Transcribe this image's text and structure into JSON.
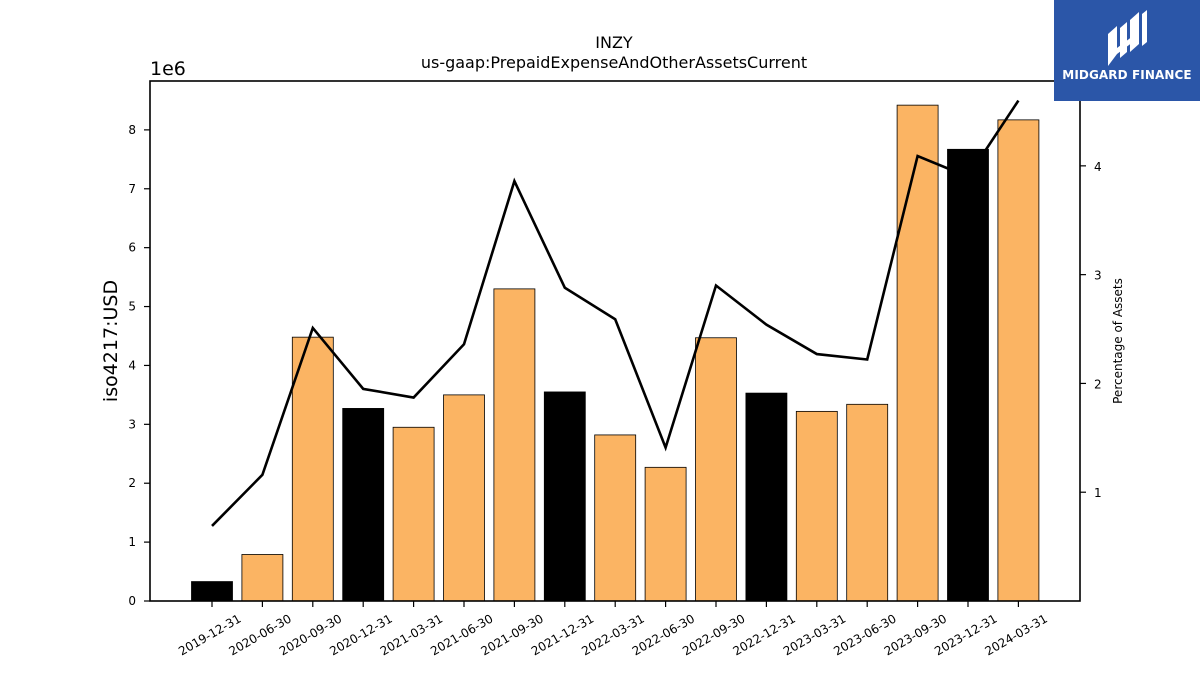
{
  "chart_data": {
    "type": "bar",
    "title": "INZY",
    "subtitle": "us-gaap:PrepaidExpenseAndOtherAssetsCurrent",
    "ylabel": "iso4217:USD",
    "y_multiplier_label": "1e6",
    "y2label": "Percentage of Assets",
    "categories": [
      "2019-12-31",
      "2020-06-30",
      "2020-09-30",
      "2020-12-31",
      "2021-03-31",
      "2021-06-30",
      "2021-09-30",
      "2021-12-31",
      "2022-03-31",
      "2022-06-30",
      "2022-09-30",
      "2022-12-31",
      "2023-03-31",
      "2023-06-30",
      "2023-09-30",
      "2023-12-31",
      "2024-03-31"
    ],
    "values": [
      0.33,
      0.79,
      4.48,
      3.27,
      2.95,
      3.5,
      5.3,
      3.55,
      2.82,
      2.27,
      4.47,
      3.53,
      3.22,
      3.34,
      8.42,
      7.67,
      8.17
    ],
    "bar_colors": [
      "#000000",
      "#fbb463",
      "#fbb463",
      "#000000",
      "#fbb463",
      "#fbb463",
      "#fbb463",
      "#000000",
      "#fbb463",
      "#fbb463",
      "#fbb463",
      "#000000",
      "#fbb463",
      "#fbb463",
      "#fbb463",
      "#000000",
      "#fbb463"
    ],
    "ylim": [
      0,
      8.83
    ],
    "yticks": [
      0,
      1,
      2,
      3,
      4,
      5,
      6,
      7,
      8
    ],
    "line_series": {
      "axis": "right",
      "values": [
        0.69,
        1.16,
        2.51,
        1.95,
        1.87,
        2.36,
        3.86,
        2.88,
        2.59,
        1.41,
        2.9,
        2.54,
        2.27,
        2.22,
        4.09,
        3.9,
        4.6
      ],
      "color": "#000000"
    },
    "y2lim": [
      0.0,
      4.78
    ],
    "y2ticks": [
      1,
      2,
      3,
      4
    ],
    "grid": false,
    "legend": "none"
  },
  "logo": {
    "text": "MIDGARD FINANCE",
    "background": "#2b56a8"
  }
}
